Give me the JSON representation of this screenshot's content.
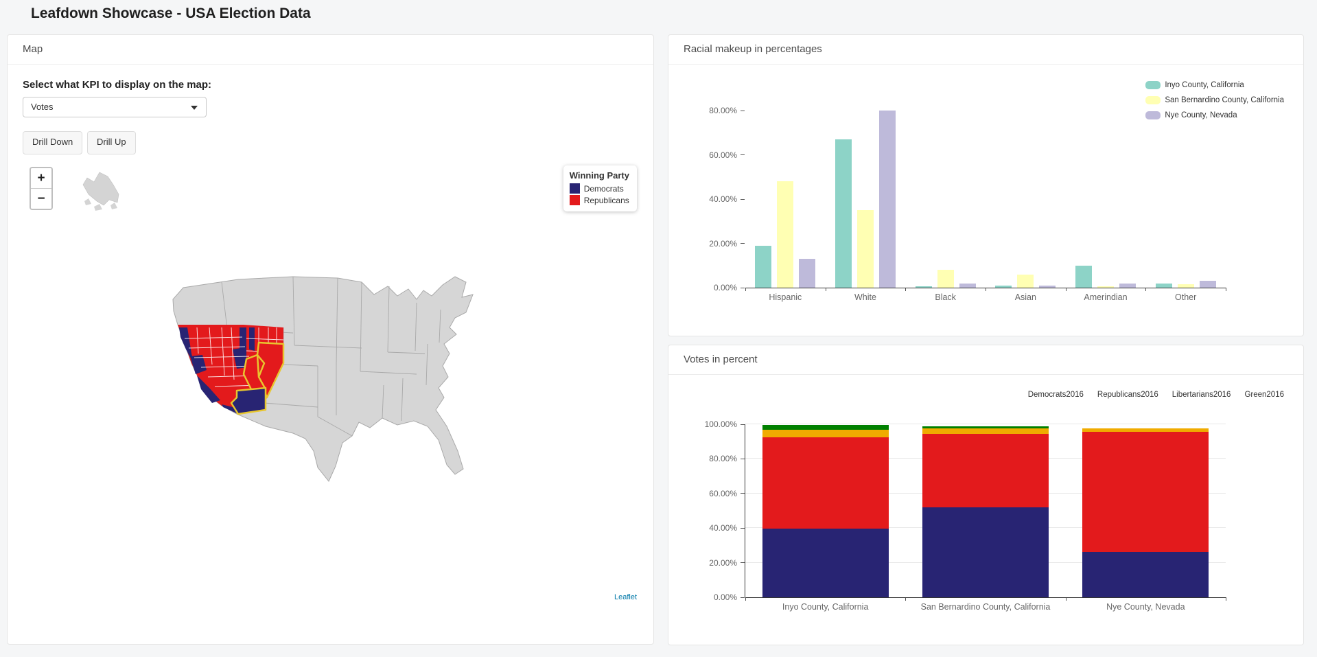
{
  "page": {
    "title": "Leafdown Showcase - USA Election Data"
  },
  "map_panel": {
    "title": "Map",
    "kpi_label": "Select what KPI to display on the map:",
    "kpi_select": {
      "value": "Votes"
    },
    "buttons": {
      "drill_down": "Drill Down",
      "drill_up": "Drill Up"
    },
    "zoom": {
      "zoom_in": "+",
      "zoom_out": "−"
    },
    "legend": {
      "title": "Winning Party",
      "entries": [
        {
          "label": "Democrats",
          "color": "#282473"
        },
        {
          "label": "Republicans",
          "color": "#e31a1c"
        }
      ]
    },
    "attribution": "Leaflet",
    "colors": {
      "base_land": "#d6d6d6",
      "state_border": "#a9a9a9",
      "county_border": "#ffffff",
      "selected_border": "#e8c62e"
    }
  },
  "racial_panel": {
    "title": "Racial makeup in percentages"
  },
  "votes_panel": {
    "title": "Votes in percent"
  },
  "chart_data": [
    {
      "id": "racial_makeup",
      "type": "bar",
      "title": "Racial makeup in percentages",
      "categories": [
        "Hispanic",
        "White",
        "Black",
        "Asian",
        "Amerindian",
        "Other"
      ],
      "series": [
        {
          "name": "Inyo County, California",
          "color": "#8dd3c7",
          "values": [
            19,
            67,
            0.5,
            1,
            10,
            2
          ]
        },
        {
          "name": "San Bernardino County, California",
          "color": "#ffffb3",
          "values": [
            48,
            35,
            8,
            6,
            0.5,
            1.5
          ]
        },
        {
          "name": "Nye County, Nevada",
          "color": "#bebada",
          "values": [
            13,
            80,
            2,
            1,
            2,
            3
          ]
        }
      ],
      "ylim": [
        0,
        80
      ],
      "yticks": [
        "0.00%",
        "20.00%",
        "40.00%",
        "60.00%",
        "80.00%"
      ],
      "grid": false,
      "legend_position": "top-right"
    },
    {
      "id": "votes_percent",
      "type": "bar-stacked",
      "title": "Votes in percent",
      "categories": [
        "Inyo County, California",
        "San Bernardino County, California",
        "Nye County, Nevada"
      ],
      "series": [
        {
          "name": "Democrats2016",
          "color": "#282473",
          "values": [
            39.5,
            52,
            26
          ]
        },
        {
          "name": "Republicans2016",
          "color": "#e31a1c",
          "values": [
            53,
            42.5,
            69.5
          ]
        },
        {
          "name": "Libertarians2016",
          "color": "#f0ab00",
          "values": [
            4.5,
            3,
            2
          ]
        },
        {
          "name": "Green2016",
          "color": "#008000",
          "values": [
            2.5,
            1.5,
            0.3
          ]
        }
      ],
      "ylim": [
        0,
        100
      ],
      "yticks": [
        "0.00%",
        "20.00%",
        "40.00%",
        "60.00%",
        "80.00%",
        "100.00%"
      ],
      "grid": true,
      "legend_position": "top-right"
    }
  ]
}
